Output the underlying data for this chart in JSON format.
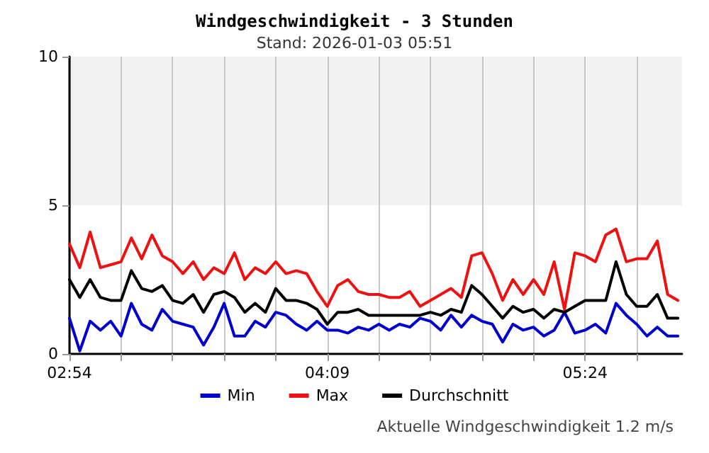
{
  "chart_data": {
    "type": "line",
    "title": "Windgeschwindigkeit - 3 Stunden",
    "subtitle": "Stand: 2026-01-03 05:51",
    "annotations": [
      "Aktuelle Windgeschwindigkeit 1.2 m/s"
    ],
    "x": [
      2.9,
      2.95,
      3.0,
      3.05,
      3.1,
      3.15,
      3.2,
      3.25,
      3.3,
      3.35,
      3.4,
      3.45,
      3.5,
      3.55,
      3.6,
      3.65,
      3.7,
      3.75,
      3.8,
      3.85,
      3.9,
      3.95,
      4.0,
      4.05,
      4.1,
      4.15,
      4.2,
      4.25,
      4.3,
      4.35,
      4.4,
      4.45,
      4.5,
      4.55,
      4.6,
      4.65,
      4.7,
      4.75,
      4.8,
      4.85,
      4.9,
      4.95,
      5.0,
      5.05,
      5.1,
      5.15,
      5.2,
      5.25,
      5.3,
      5.35,
      5.4,
      5.45,
      5.5,
      5.55,
      5.6,
      5.65,
      5.7,
      5.75,
      5.8,
      5.85
    ],
    "series": [
      {
        "name": "Min",
        "color": "#0000cc",
        "values": [
          1.2,
          0.1,
          1.1,
          0.8,
          1.1,
          0.6,
          1.7,
          1.0,
          0.8,
          1.5,
          1.1,
          1.0,
          0.9,
          0.3,
          0.9,
          1.7,
          0.6,
          0.6,
          1.1,
          0.9,
          1.4,
          1.3,
          1.0,
          0.8,
          1.1,
          0.8,
          0.8,
          0.7,
          0.9,
          0.8,
          1.0,
          0.8,
          1.0,
          0.9,
          1.2,
          1.1,
          0.8,
          1.3,
          0.9,
          1.3,
          1.1,
          1.0,
          0.4,
          1.0,
          0.8,
          0.9,
          0.6,
          0.8,
          1.4,
          0.7,
          0.8,
          1.0,
          0.7,
          1.7,
          1.3,
          1.0,
          0.6,
          0.9,
          0.6,
          0.6
        ]
      },
      {
        "name": "Max",
        "color": "#ee1111",
        "values": [
          3.7,
          2.9,
          4.1,
          2.9,
          3.0,
          3.1,
          3.9,
          3.2,
          4.0,
          3.3,
          3.1,
          2.7,
          3.1,
          2.5,
          2.9,
          2.7,
          3.4,
          2.5,
          2.9,
          2.7,
          3.1,
          2.7,
          2.8,
          2.7,
          2.1,
          1.6,
          2.3,
          2.5,
          2.1,
          2.0,
          2.0,
          1.9,
          1.9,
          2.1,
          1.6,
          1.8,
          2.0,
          2.2,
          1.9,
          3.3,
          3.4,
          2.7,
          1.8,
          2.5,
          2.0,
          2.5,
          2.0,
          3.1,
          1.5,
          3.4,
          3.3,
          3.1,
          4.0,
          4.2,
          3.1,
          3.2,
          3.2,
          3.8,
          2.0,
          1.8
        ]
      },
      {
        "name": "Durchschnitt",
        "color": "#000000",
        "values": [
          2.5,
          1.9,
          2.5,
          1.9,
          1.8,
          1.8,
          2.8,
          2.2,
          2.1,
          2.3,
          1.8,
          1.7,
          2.0,
          1.4,
          2.0,
          2.1,
          1.9,
          1.4,
          1.7,
          1.4,
          2.2,
          1.8,
          1.8,
          1.7,
          1.5,
          1.0,
          1.4,
          1.4,
          1.5,
          1.3,
          1.3,
          1.3,
          1.3,
          1.3,
          1.3,
          1.4,
          1.3,
          1.5,
          1.4,
          2.3,
          2.0,
          1.6,
          1.2,
          1.6,
          1.4,
          1.5,
          1.2,
          1.5,
          1.4,
          1.6,
          1.8,
          1.8,
          1.8,
          3.1,
          2.0,
          1.6,
          1.6,
          2.0,
          1.2,
          1.2
        ]
      }
    ],
    "xlim": [
      2.9,
      5.87
    ],
    "xticks": [
      {
        "value": 2.9,
        "label": "02:54"
      },
      {
        "value": 3.15,
        "label": null
      },
      {
        "value": 3.4,
        "label": null
      },
      {
        "value": 3.65,
        "label": null
      },
      {
        "value": 3.9,
        "label": null
      },
      {
        "value": 4.15,
        "label": "04:09"
      },
      {
        "value": 4.4,
        "label": null
      },
      {
        "value": 4.65,
        "label": null
      },
      {
        "value": 4.9,
        "label": null
      },
      {
        "value": 5.15,
        "label": null
      },
      {
        "value": 5.4,
        "label": "05:24"
      },
      {
        "value": 5.65,
        "label": null
      }
    ],
    "ylim": [
      0,
      10
    ],
    "yticks": [
      0,
      5,
      10
    ],
    "bands": [
      {
        "axis": "y",
        "from": 5,
        "to": 10,
        "color": "#f2f2f2"
      }
    ],
    "grid": "x",
    "legend": "bottom",
    "marker": "none",
    "line_style": "solid"
  }
}
